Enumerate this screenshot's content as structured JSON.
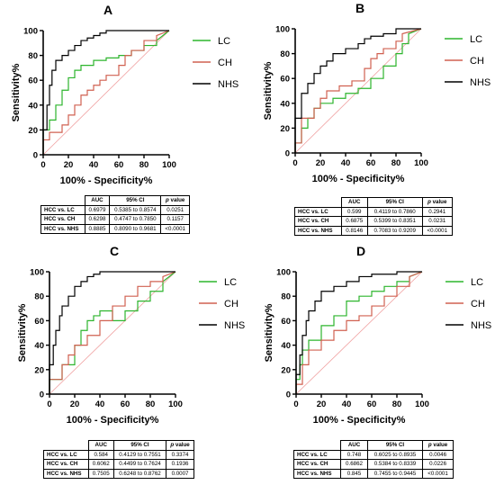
{
  "figure": {
    "colors": {
      "LC": "#2db52d",
      "CH": "#d06050",
      "NHS": "#000000",
      "diagonal": "#f0a0a0",
      "axis": "#000000"
    },
    "common": {
      "xlabel": "100% - Specificity%",
      "ylabel": "Sensitivity%",
      "ticks": [
        "0",
        "20",
        "40",
        "60",
        "80",
        "100"
      ],
      "table_headers": [
        "AUC",
        "95% CI",
        "p",
        "value"
      ]
    }
  },
  "chart_data": [
    {
      "panel": "A",
      "type": "line",
      "xlabel": "100% - Specificity%",
      "ylabel": "Sensitivity%",
      "xlim": [
        0,
        100
      ],
      "ylim": [
        0,
        100
      ],
      "grid": false,
      "legend": "right",
      "series": [
        {
          "name": "LC",
          "x": [
            0,
            0,
            5,
            5,
            10,
            10,
            15,
            15,
            20,
            20,
            25,
            25,
            30,
            30,
            40,
            40,
            50,
            50,
            60,
            60,
            70,
            70,
            80,
            80,
            90,
            90,
            100
          ],
          "y": [
            0,
            20,
            20,
            28,
            28,
            40,
            40,
            52,
            52,
            62,
            62,
            68,
            68,
            72,
            72,
            76,
            76,
            78,
            78,
            80,
            80,
            84,
            84,
            88,
            88,
            92,
            100
          ]
        },
        {
          "name": "CH",
          "x": [
            0,
            0,
            5,
            5,
            15,
            15,
            20,
            20,
            25,
            25,
            30,
            30,
            35,
            35,
            40,
            40,
            45,
            45,
            50,
            50,
            60,
            60,
            65,
            65,
            70,
            70,
            80,
            80,
            90,
            90,
            100
          ],
          "y": [
            0,
            12,
            12,
            18,
            18,
            24,
            24,
            32,
            32,
            40,
            40,
            48,
            48,
            52,
            52,
            56,
            56,
            60,
            60,
            64,
            64,
            72,
            72,
            80,
            80,
            84,
            84,
            92,
            92,
            96,
            100
          ]
        },
        {
          "name": "NHS",
          "x": [
            0,
            0,
            3,
            3,
            5,
            5,
            7,
            7,
            10,
            10,
            15,
            15,
            20,
            20,
            25,
            25,
            30,
            30,
            35,
            35,
            40,
            40,
            45,
            45,
            50,
            50,
            100
          ],
          "y": [
            0,
            20,
            20,
            40,
            40,
            56,
            56,
            68,
            68,
            76,
            76,
            80,
            80,
            84,
            84,
            88,
            88,
            92,
            92,
            94,
            94,
            96,
            96,
            98,
            98,
            100,
            100
          ]
        }
      ],
      "table": [
        {
          "label": "HCC vs. LC",
          "auc": "0.6979",
          "ci": "0.5385 to 0.8574",
          "p": "0.0251"
        },
        {
          "label": "HCC vs. CH",
          "auc": "0.6298",
          "ci": "0.4747 to 0.7850",
          "p": "0.1157"
        },
        {
          "label": "HCC vs. NHS",
          "auc": "0.8885",
          "ci": "0.8090 to 0.9681",
          "p": "<0.0001"
        }
      ]
    },
    {
      "panel": "B",
      "type": "line",
      "xlabel": "100% - Specificity%",
      "ylabel": "Sensitivity%",
      "xlim": [
        0,
        100
      ],
      "ylim": [
        0,
        100
      ],
      "grid": false,
      "legend": "right",
      "series": [
        {
          "name": "LC",
          "x": [
            0,
            0,
            5,
            5,
            10,
            10,
            15,
            15,
            20,
            20,
            30,
            30,
            40,
            40,
            50,
            50,
            60,
            60,
            70,
            70,
            80,
            80,
            85,
            85,
            90,
            90,
            100
          ],
          "y": [
            0,
            8,
            8,
            20,
            20,
            28,
            28,
            36,
            36,
            40,
            40,
            44,
            44,
            48,
            48,
            52,
            52,
            60,
            60,
            70,
            70,
            80,
            80,
            88,
            88,
            96,
            100
          ]
        },
        {
          "name": "CH",
          "x": [
            0,
            0,
            5,
            5,
            15,
            15,
            20,
            20,
            25,
            25,
            35,
            35,
            45,
            45,
            55,
            55,
            60,
            60,
            65,
            65,
            70,
            70,
            80,
            80,
            85,
            85,
            100
          ],
          "y": [
            0,
            8,
            8,
            28,
            28,
            36,
            36,
            44,
            44,
            50,
            50,
            54,
            54,
            58,
            58,
            68,
            68,
            76,
            76,
            80,
            80,
            84,
            84,
            90,
            90,
            96,
            100
          ]
        },
        {
          "name": "NHS",
          "x": [
            0,
            0,
            5,
            5,
            10,
            10,
            15,
            15,
            20,
            20,
            25,
            25,
            30,
            30,
            40,
            40,
            50,
            50,
            55,
            55,
            60,
            60,
            70,
            70,
            80,
            80,
            100
          ],
          "y": [
            0,
            28,
            28,
            48,
            48,
            56,
            56,
            64,
            64,
            70,
            70,
            74,
            74,
            80,
            80,
            84,
            84,
            88,
            88,
            92,
            92,
            94,
            94,
            96,
            96,
            100,
            100
          ]
        }
      ],
      "table": [
        {
          "label": "HCC vs. LC",
          "auc": "0.599",
          "ci": "0.4119 to 0.7860",
          "p": "0.2941"
        },
        {
          "label": "HCC vs. CH",
          "auc": "0.6875",
          "ci": "0.5399 to 0.8351",
          "p": "0.0231"
        },
        {
          "label": "HCC vs. NHS",
          "auc": "0.8146",
          "ci": "0.7083 to 0.9209",
          "p": "<0.0001"
        }
      ]
    },
    {
      "panel": "C",
      "type": "line",
      "xlabel": "100% - Specificity%",
      "ylabel": "Sensitivity%",
      "xlim": [
        0,
        100
      ],
      "ylim": [
        0,
        100
      ],
      "grid": false,
      "legend": "right",
      "series": [
        {
          "name": "LC",
          "x": [
            0,
            0,
            10,
            10,
            20,
            20,
            25,
            25,
            30,
            30,
            35,
            35,
            40,
            40,
            50,
            50,
            60,
            60,
            70,
            70,
            80,
            80,
            90,
            90,
            100
          ],
          "y": [
            0,
            12,
            12,
            24,
            24,
            40,
            40,
            52,
            52,
            60,
            60,
            64,
            64,
            68,
            68,
            60,
            60,
            68,
            68,
            76,
            76,
            84,
            84,
            92,
            100
          ]
        },
        {
          "name": "CH",
          "x": [
            0,
            0,
            10,
            10,
            15,
            15,
            20,
            20,
            30,
            30,
            40,
            40,
            50,
            50,
            60,
            60,
            70,
            70,
            80,
            80,
            90,
            90,
            100
          ],
          "y": [
            0,
            12,
            12,
            24,
            24,
            32,
            32,
            40,
            40,
            48,
            48,
            60,
            60,
            72,
            72,
            80,
            80,
            88,
            88,
            92,
            92,
            96,
            100
          ]
        },
        {
          "name": "NHS",
          "x": [
            0,
            0,
            3,
            3,
            5,
            5,
            8,
            8,
            10,
            10,
            15,
            15,
            20,
            20,
            25,
            25,
            30,
            30,
            35,
            35,
            40,
            40,
            50,
            50,
            100
          ],
          "y": [
            0,
            24,
            24,
            40,
            40,
            52,
            52,
            64,
            64,
            72,
            72,
            80,
            80,
            88,
            88,
            92,
            92,
            96,
            96,
            98,
            98,
            100,
            100,
            100,
            100
          ]
        }
      ],
      "table": [
        {
          "label": "HCC vs. LC",
          "auc": "0.584",
          "ci": "0.4129 to 0.7551",
          "p": "0.3374"
        },
        {
          "label": "HCC vs. CH",
          "auc": "0.6062",
          "ci": "0.4499 to 0.7624",
          "p": "0.1936"
        },
        {
          "label": "HCC vs. NHS",
          "auc": "0.7505",
          "ci": "0.6248 to 0.8762",
          "p": "0.0007"
        }
      ]
    },
    {
      "panel": "D",
      "type": "line",
      "xlabel": "100% - Specificity%",
      "ylabel": "Sensitivity%",
      "xlim": [
        0,
        100
      ],
      "ylim": [
        0,
        100
      ],
      "grid": false,
      "legend": "right",
      "series": [
        {
          "name": "LC",
          "x": [
            0,
            0,
            3,
            3,
            5,
            5,
            10,
            10,
            20,
            20,
            30,
            30,
            40,
            40,
            50,
            50,
            60,
            60,
            70,
            70,
            80,
            80,
            90,
            90,
            100
          ],
          "y": [
            0,
            12,
            12,
            24,
            24,
            36,
            36,
            44,
            44,
            56,
            56,
            64,
            64,
            76,
            76,
            80,
            80,
            84,
            84,
            88,
            88,
            92,
            92,
            96,
            100
          ]
        },
        {
          "name": "CH",
          "x": [
            0,
            0,
            5,
            5,
            10,
            10,
            20,
            20,
            30,
            30,
            40,
            40,
            50,
            50,
            60,
            60,
            70,
            70,
            80,
            80,
            90,
            90,
            100
          ],
          "y": [
            0,
            8,
            8,
            24,
            24,
            36,
            36,
            44,
            44,
            52,
            52,
            60,
            60,
            64,
            64,
            72,
            72,
            80,
            80,
            88,
            88,
            96,
            100
          ]
        },
        {
          "name": "NHS",
          "x": [
            0,
            0,
            3,
            3,
            5,
            5,
            8,
            8,
            10,
            10,
            15,
            15,
            20,
            20,
            30,
            30,
            40,
            40,
            50,
            50,
            60,
            60,
            80,
            80,
            100
          ],
          "y": [
            0,
            16,
            16,
            32,
            32,
            48,
            48,
            60,
            60,
            68,
            68,
            76,
            76,
            84,
            84,
            88,
            88,
            92,
            92,
            96,
            96,
            98,
            98,
            100,
            100
          ]
        }
      ],
      "table": [
        {
          "label": "HCC vs. LC",
          "auc": "0.748",
          "ci": "0.6025 to 0.8935",
          "p": "0.0046"
        },
        {
          "label": "HCC vs. CH",
          "auc": "0.6862",
          "ci": "0.5384 to 0.8339",
          "p": "0.0226"
        },
        {
          "label": "HCC vs. NHS",
          "auc": "0.845",
          "ci": "0.7455 to 0.9445",
          "p": "<0.0001"
        }
      ]
    }
  ]
}
